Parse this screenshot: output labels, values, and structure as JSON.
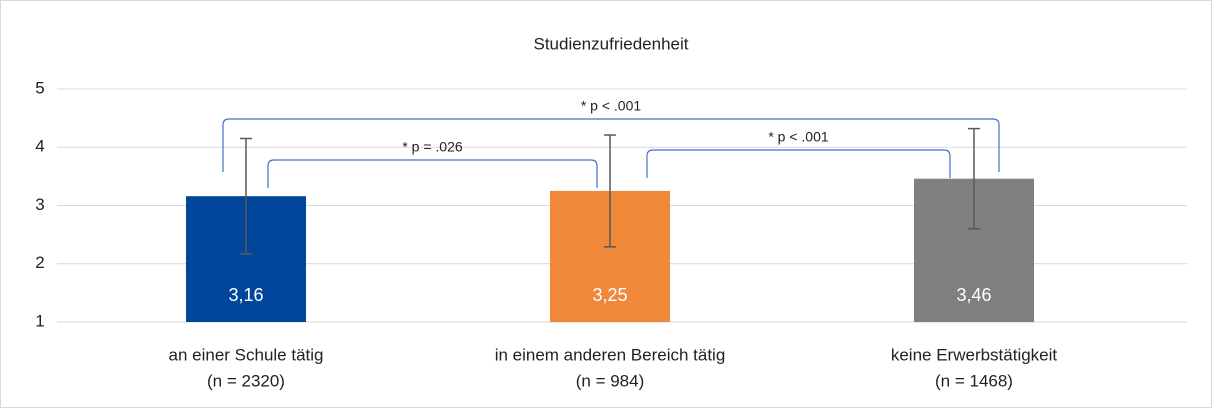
{
  "chart_data": {
    "type": "bar",
    "title": "Studienzufriedenheit",
    "categories": [
      [
        "an einer Schule tätig",
        "(n = 2320)"
      ],
      [
        "in einem anderen Bereich tätig",
        "(n = 984)"
      ],
      [
        "keine Erwerbstätigkeit",
        "(n = 1468)"
      ]
    ],
    "values": [
      3.16,
      3.25,
      3.46
    ],
    "value_labels": [
      "3,16",
      "3,25",
      "3,46"
    ],
    "errors": [
      0.99,
      0.96,
      0.86
    ],
    "colors": [
      "#00479b",
      "#f0883a",
      "#7f7f7f"
    ],
    "ylim": [
      1,
      5
    ],
    "yticks": [
      1,
      2,
      3,
      4,
      5
    ],
    "grid": true,
    "comparisons": [
      {
        "from": 0,
        "to": 1,
        "label": "* p = .026"
      },
      {
        "from": 1,
        "to": 2,
        "label": "* p < .001"
      },
      {
        "from": 0,
        "to": 2,
        "label": "* p < .001"
      }
    ]
  }
}
